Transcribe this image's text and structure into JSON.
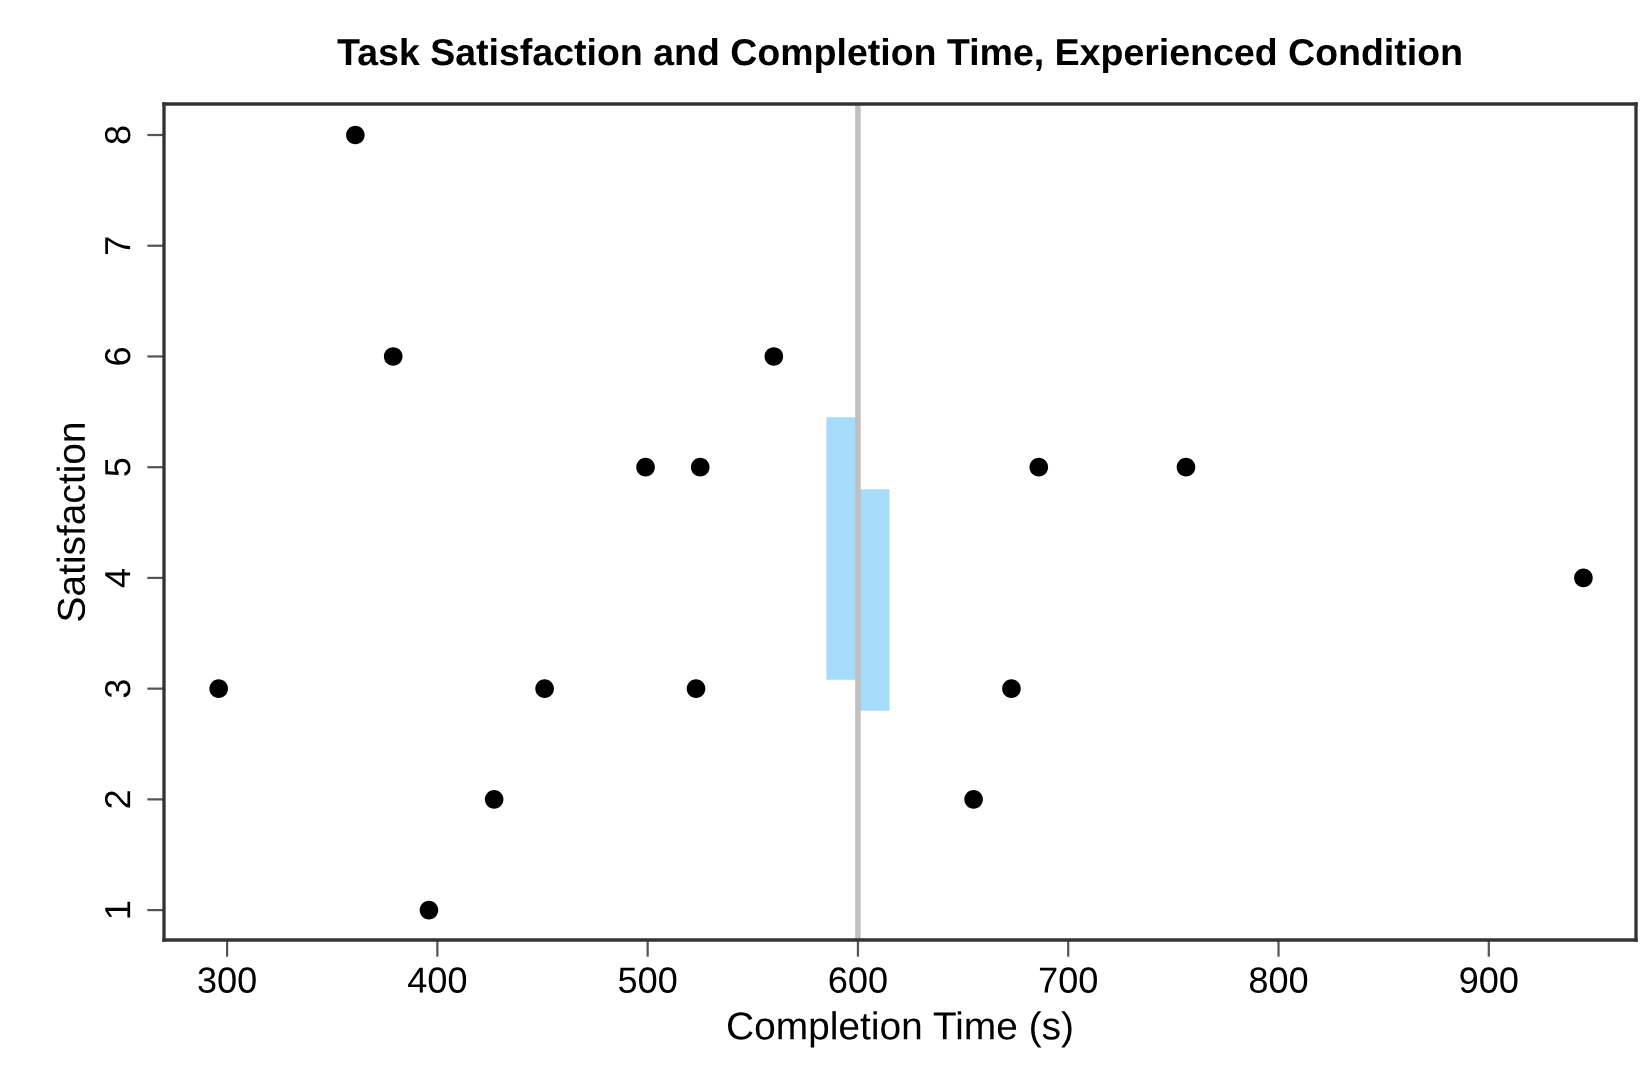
{
  "chart_data": {
    "type": "scatter",
    "title": "Task Satisfaction and Completion Time, Experienced Condition",
    "xlabel": "Completion Time (s)",
    "ylabel": "Satisfaction",
    "series": [
      {
        "type": "bar",
        "color": "#a6dcfb",
        "x": [
          592.5,
          607.5
        ],
        "base": [
          3.08,
          2.8
        ],
        "values": [
          2.37,
          2.0
        ]
      },
      {
        "color": "#000000",
        "x": [
          296,
          361,
          379,
          396,
          427,
          451,
          499,
          525,
          523,
          560,
          655,
          673,
          686,
          756,
          945
        ],
        "values": [
          3,
          8,
          6,
          1,
          2,
          3,
          5,
          5,
          3,
          6,
          2,
          3,
          5,
          5,
          4
        ]
      }
    ],
    "ref_lines": [
      {
        "axis": "x",
        "value": 600,
        "color": "#c0c0c0"
      }
    ],
    "xlim": [
      270,
      970
    ],
    "ylim": [
      0.73,
      8.28
    ],
    "xticks": [
      300,
      400,
      500,
      600,
      700,
      800,
      900
    ],
    "yticks": [
      1,
      2,
      3,
      4,
      5,
      6,
      7,
      8
    ],
    "marker": "circle",
    "grid": false,
    "legend": false
  }
}
